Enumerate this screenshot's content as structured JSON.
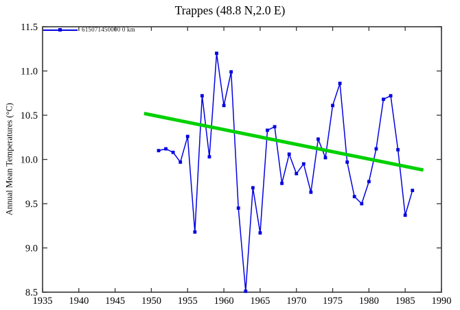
{
  "colors": {
    "series": "#0202e0",
    "trend": "#00d000",
    "axis": "#333333",
    "text": "#000000"
  },
  "chart_data": {
    "type": "line",
    "title": "Trappes (48.8 N,2.0 E)",
    "xlabel": "",
    "ylabel": "Annual Mean Temperatures (°C)",
    "xlim": [
      1935,
      1990
    ],
    "ylim": [
      8.5,
      11.5
    ],
    "grid": false,
    "legend_position": "top-left",
    "x_ticks": [
      1935,
      1940,
      1945,
      1950,
      1955,
      1960,
      1965,
      1970,
      1975,
      1980,
      1985,
      1990
    ],
    "x_tick_labels": [
      "1935",
      "1940",
      "1945",
      "1950",
      "1955",
      "1960",
      "1965",
      "1970",
      "1975",
      "1980",
      "1985",
      "1990"
    ],
    "y_ticks": [
      8.5,
      9.0,
      9.5,
      10.0,
      10.5,
      11.0,
      11.5
    ],
    "y_tick_labels": [
      "8.5",
      "9.0",
      "9.5",
      "10.0",
      "10.5",
      "11.0",
      "11.5"
    ],
    "series": [
      {
        "name": "615071450000 0 km",
        "role": "station-series",
        "color": "#0202e0",
        "markers": true,
        "x": [
          1951,
          1952,
          1953,
          1954,
          1955,
          1956,
          1957,
          1958,
          1959,
          1960,
          1961,
          1962,
          1963,
          1964,
          1965,
          1966,
          1967,
          1968,
          1969,
          1970,
          1971,
          1972,
          1973,
          1974,
          1975,
          1976,
          1977,
          1978,
          1979,
          1980,
          1981,
          1982,
          1983,
          1984,
          1985,
          1986
        ],
        "values": [
          10.1,
          10.12,
          10.08,
          9.97,
          10.26,
          9.18,
          10.72,
          10.03,
          11.2,
          10.61,
          10.99,
          9.45,
          8.51,
          9.68,
          9.17,
          10.33,
          10.37,
          9.73,
          10.06,
          9.84,
          9.95,
          9.63,
          10.23,
          10.02,
          10.61,
          10.86,
          9.97,
          9.58,
          9.5,
          9.75,
          10.12,
          10.68,
          10.72,
          10.11,
          9.37,
          9.65
        ]
      },
      {
        "name": "trend-line",
        "role": "trend",
        "color": "#00d000",
        "markers": false,
        "x": [
          1949,
          1987.5
        ],
        "values": [
          10.52,
          9.88
        ]
      }
    ]
  }
}
